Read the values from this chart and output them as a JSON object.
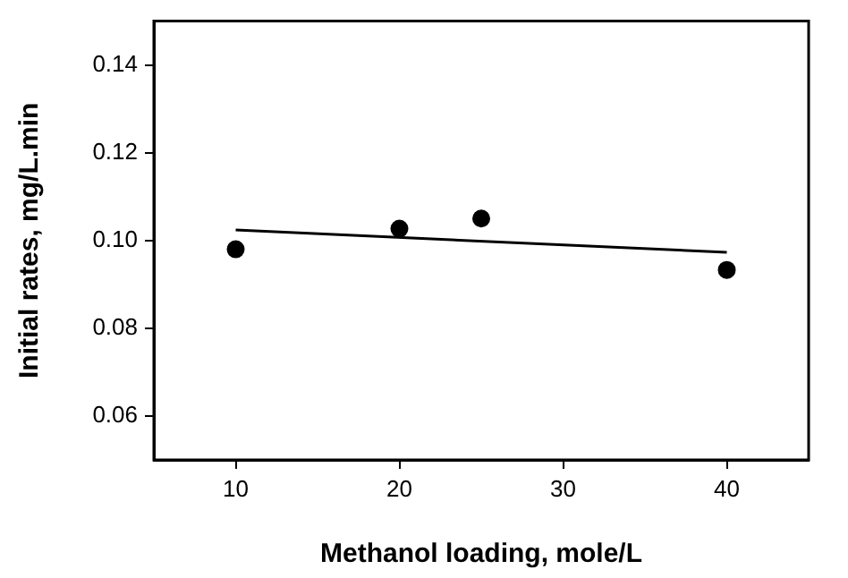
{
  "chart_data": {
    "type": "scatter",
    "xlabel": "Methanol loading, mole/L",
    "ylabel": "Initial rates, mg/L.min",
    "xlim": [
      5,
      45
    ],
    "xticks": [
      10,
      20,
      30,
      40
    ],
    "ylim": [
      0.05,
      0.15
    ],
    "yticks": [
      0.06,
      0.08,
      {
        "value": 0.1,
        "label": "0.10"
      },
      0.12,
      0.14
    ],
    "marker": "circle",
    "series": [
      {
        "color": "#000000",
        "x": [
          10,
          20,
          25,
          40
        ],
        "values": [
          0.098,
          0.1027,
          0.105,
          0.0933
        ]
      },
      {
        "type": "line",
        "color": "#000000",
        "x": [
          10,
          40
        ],
        "values": [
          0.1024,
          0.0973
        ],
        "marker": "none"
      }
    ]
  }
}
